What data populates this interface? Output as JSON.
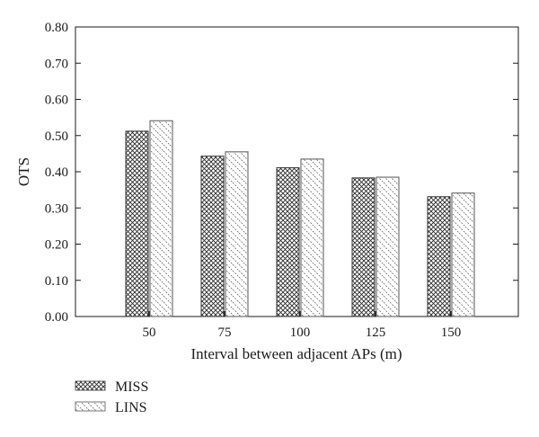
{
  "chart_data": {
    "type": "bar",
    "title": "",
    "xlabel": "Interval between adjacent APs (m)",
    "ylabel": "OTS",
    "categories": [
      "50",
      "75",
      "100",
      "125",
      "150"
    ],
    "series": [
      {
        "name": "MISS",
        "values": [
          0.512,
          0.443,
          0.411,
          0.383,
          0.331
        ],
        "pattern": "crosshatch",
        "color": "#333333"
      },
      {
        "name": "LINS",
        "values": [
          0.541,
          0.455,
          0.435,
          0.385,
          0.341
        ],
        "pattern": "diagonal-dashed",
        "color": "#555555"
      }
    ],
    "ylim": [
      0,
      0.8
    ],
    "yticks": [
      "0.00",
      "0.10",
      "0.20",
      "0.30",
      "0.40",
      "0.50",
      "0.60",
      "0.70",
      "0.80"
    ],
    "grid": false,
    "legend": "bottom-left"
  }
}
